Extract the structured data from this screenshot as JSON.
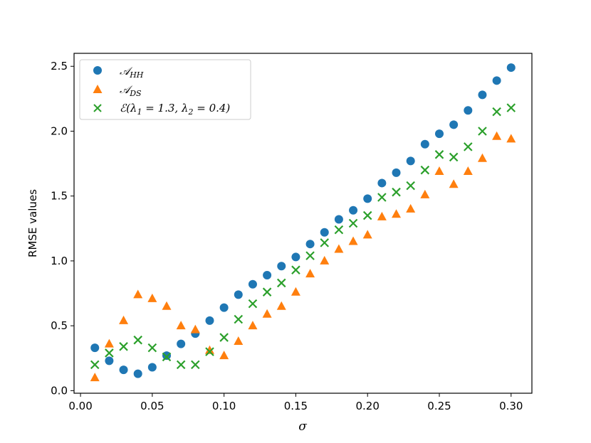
{
  "chart_data": {
    "type": "scatter",
    "xlabel": "σ",
    "ylabel": "RMSE values",
    "xlim": [
      -0.0045,
      0.3145
    ],
    "ylim": [
      -0.02,
      2.6
    ],
    "xticks": [
      "0.00",
      "0.05",
      "0.10",
      "0.15",
      "0.20",
      "0.25",
      "0.30"
    ],
    "xtick_values": [
      0.0,
      0.05,
      0.1,
      0.15,
      0.2,
      0.25,
      0.3
    ],
    "yticks": [
      "0.0",
      "0.5",
      "1.0",
      "1.5",
      "2.0",
      "2.5"
    ],
    "ytick_values": [
      0.0,
      0.5,
      1.0,
      1.5,
      2.0,
      2.5
    ],
    "grid": false,
    "legend_position": "top-left",
    "x": [
      0.01,
      0.02,
      0.03,
      0.04,
      0.05,
      0.06,
      0.07,
      0.08,
      0.09,
      0.1,
      0.11,
      0.12,
      0.13,
      0.14,
      0.15,
      0.16,
      0.17,
      0.18,
      0.19,
      0.2,
      0.21,
      0.22,
      0.23,
      0.24,
      0.25,
      0.26,
      0.27,
      0.28,
      0.29,
      0.3
    ],
    "series": [
      {
        "name": "𝒜HH",
        "name_main": "𝒜",
        "name_sub": "HH",
        "marker": "circle",
        "color": "#1f77b4",
        "values": [
          0.33,
          0.23,
          0.16,
          0.13,
          0.18,
          0.27,
          0.36,
          0.44,
          0.54,
          0.64,
          0.74,
          0.82,
          0.89,
          0.96,
          1.03,
          1.13,
          1.22,
          1.32,
          1.39,
          1.48,
          1.6,
          1.68,
          1.77,
          1.9,
          1.98,
          2.05,
          2.16,
          2.28,
          2.39,
          2.49
        ]
      },
      {
        "name": "𝒜DS",
        "name_main": "𝒜",
        "name_sub": "DS",
        "marker": "triangle",
        "color": "#ff7f0e",
        "values": [
          0.1,
          0.36,
          0.54,
          0.74,
          0.71,
          0.65,
          0.5,
          0.47,
          0.31,
          0.27,
          0.38,
          0.5,
          0.59,
          0.65,
          0.76,
          0.9,
          1.0,
          1.09,
          1.15,
          1.2,
          1.34,
          1.36,
          1.4,
          1.51,
          1.69,
          1.59,
          1.69,
          1.79,
          1.96,
          1.94
        ]
      },
      {
        "name": "ℰ(λ1 = 1.3, λ2 = 0.4)",
        "name_main": "ℰ(λ",
        "name_sub1": "1",
        "name_mid": " = 1.3, λ",
        "name_sub2": "2",
        "name_end": " = 0.4)",
        "marker": "x",
        "color": "#2ca02c",
        "values": [
          0.2,
          0.29,
          0.34,
          0.39,
          0.33,
          0.26,
          0.2,
          0.2,
          0.3,
          0.41,
          0.55,
          0.67,
          0.76,
          0.83,
          0.93,
          1.04,
          1.14,
          1.24,
          1.29,
          1.35,
          1.49,
          1.53,
          1.58,
          1.7,
          1.82,
          1.8,
          1.88,
          2.0,
          2.15,
          2.18
        ]
      }
    ]
  }
}
